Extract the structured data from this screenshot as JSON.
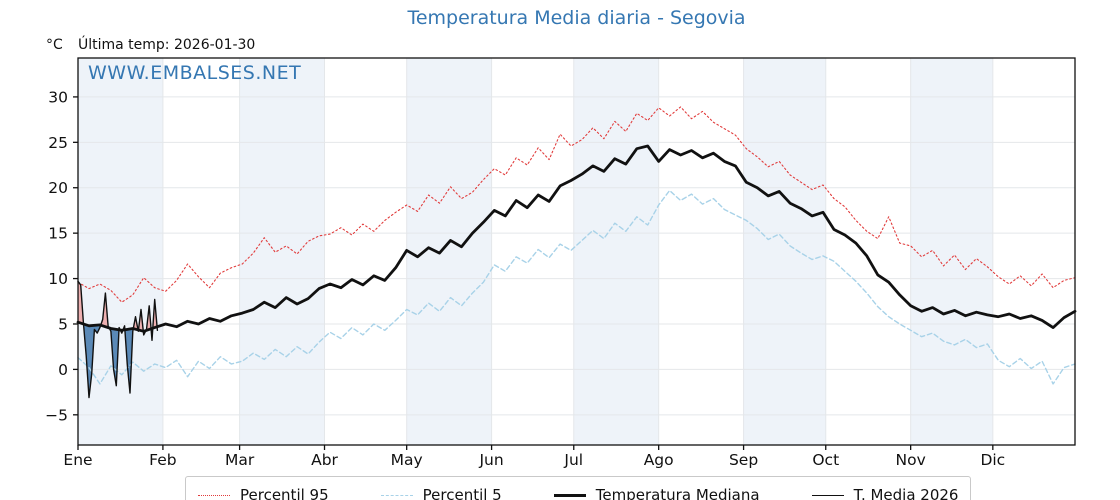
{
  "title": "Temperatura Media diaria - Segovia",
  "watermark": "WWW.EMBALSES.NET",
  "header": {
    "units": "°C",
    "last_temp_label": "Última temp: 2026-01-30"
  },
  "legend": {
    "items": [
      {
        "label": "Percentil 95",
        "color": "#e13c3c",
        "style": "dotted"
      },
      {
        "label": "Percentil 5",
        "color": "#a8d2e8",
        "style": "dashed"
      },
      {
        "label": "Temperatura Mediana",
        "color": "#111111",
        "style": "solid-thick"
      },
      {
        "label": "T. Media 2026",
        "color": "#111111",
        "style": "solid-thin"
      }
    ]
  },
  "chart_data": {
    "type": "line",
    "title": "Temperatura Media diaria - Segovia",
    "ylabel": "°C",
    "ylim": [
      -8.3,
      34.3
    ],
    "yticks": [
      -5,
      0,
      5,
      10,
      15,
      20,
      25,
      30
    ],
    "grid": true,
    "legend_position": "bottom",
    "days_per_year": 365,
    "months": [
      {
        "label": "Ene",
        "start_day": 1
      },
      {
        "label": "Feb",
        "start_day": 32
      },
      {
        "label": "Mar",
        "start_day": 60
      },
      {
        "label": "Abr",
        "start_day": 91
      },
      {
        "label": "May",
        "start_day": 121
      },
      {
        "label": "Jun",
        "start_day": 152
      },
      {
        "label": "Jul",
        "start_day": 182
      },
      {
        "label": "Ago",
        "start_day": 213
      },
      {
        "label": "Sep",
        "start_day": 244
      },
      {
        "label": "Oct",
        "start_day": 274
      },
      {
        "label": "Nov",
        "start_day": 305
      },
      {
        "label": "Dic",
        "start_day": 335
      }
    ],
    "colors": {
      "band": "#eef3f9",
      "grid": "#e4e7ea",
      "axis": "#111111",
      "title_blue": "#3577b2",
      "fill_above": "#eeaaaa",
      "fill_below": "#4d80b1"
    },
    "series": [
      {
        "name": "Percentil 95",
        "color": "#e13c3c",
        "style": "dotted",
        "width": 1.1,
        "x_start": 1,
        "x_step": 4,
        "values": [
          9.6,
          8.9,
          9.4,
          8.7,
          7.4,
          8.2,
          10.1,
          9.0,
          8.6,
          9.8,
          11.6,
          10.2,
          9.0,
          10.6,
          11.2,
          11.6,
          12.8,
          14.5,
          12.9,
          13.6,
          12.7,
          14.1,
          14.7,
          14.9,
          15.6,
          14.8,
          16.0,
          15.2,
          16.4,
          17.3,
          18.1,
          17.4,
          19.2,
          18.3,
          20.1,
          18.8,
          19.5,
          20.9,
          22.1,
          21.4,
          23.3,
          22.5,
          24.4,
          23.1,
          25.9,
          24.6,
          25.3,
          26.6,
          25.4,
          27.3,
          26.2,
          28.2,
          27.4,
          28.8,
          27.9,
          28.9,
          27.6,
          28.4,
          27.2,
          26.5,
          25.8,
          24.3,
          23.4,
          22.3,
          22.9,
          21.4,
          20.6,
          19.8,
          20.3,
          18.8,
          17.9,
          16.4,
          15.2,
          14.4,
          16.8,
          13.9,
          13.6,
          12.4,
          13.1,
          11.4,
          12.6,
          11.0,
          12.2,
          11.3,
          10.2,
          9.4,
          10.3,
          9.2,
          10.5,
          9.0,
          9.8,
          10.1
        ]
      },
      {
        "name": "Percentil 5",
        "color": "#a8d2e8",
        "style": "dashed",
        "width": 1.4,
        "x_start": 1,
        "x_step": 4,
        "values": [
          1.3,
          0.2,
          -1.6,
          0.4,
          -0.6,
          0.8,
          -0.2,
          0.6,
          0.2,
          1.0,
          -0.8,
          0.9,
          0.1,
          1.4,
          0.6,
          0.9,
          1.8,
          1.1,
          2.2,
          1.4,
          2.5,
          1.7,
          3.0,
          4.1,
          3.4,
          4.6,
          3.8,
          5.0,
          4.3,
          5.4,
          6.6,
          6.0,
          7.3,
          6.4,
          7.9,
          7.0,
          8.4,
          9.6,
          11.5,
          10.8,
          12.4,
          11.7,
          13.2,
          12.3,
          13.8,
          13.1,
          14.2,
          15.3,
          14.4,
          16.1,
          15.2,
          16.8,
          15.9,
          18.1,
          19.7,
          18.6,
          19.3,
          18.2,
          18.8,
          17.6,
          17.0,
          16.4,
          15.5,
          14.3,
          14.9,
          13.6,
          12.8,
          12.1,
          12.5,
          11.9,
          10.8,
          9.7,
          8.4,
          6.9,
          5.8,
          5.0,
          4.3,
          3.6,
          4.0,
          3.1,
          2.7,
          3.3,
          2.4,
          2.8,
          1.0,
          0.3,
          1.2,
          0.1,
          0.9,
          -1.6,
          0.2,
          0.6
        ]
      },
      {
        "name": "Temperatura Mediana",
        "color": "#111111",
        "style": "solid",
        "width": 2.8,
        "x_start": 1,
        "x_step": 4,
        "values": [
          5.2,
          4.8,
          4.9,
          4.5,
          4.3,
          4.5,
          4.2,
          4.6,
          5.0,
          4.7,
          5.3,
          5.0,
          5.6,
          5.3,
          5.9,
          6.2,
          6.6,
          7.4,
          6.8,
          7.9,
          7.2,
          7.8,
          8.9,
          9.4,
          9.0,
          9.9,
          9.3,
          10.3,
          9.8,
          11.2,
          13.1,
          12.4,
          13.4,
          12.8,
          14.2,
          13.5,
          15.0,
          16.2,
          17.5,
          16.9,
          18.6,
          17.8,
          19.2,
          18.5,
          20.2,
          20.8,
          21.5,
          22.4,
          21.8,
          23.2,
          22.6,
          24.3,
          24.6,
          22.9,
          24.2,
          23.6,
          24.1,
          23.3,
          23.8,
          22.9,
          22.4,
          20.6,
          20.0,
          19.1,
          19.6,
          18.3,
          17.7,
          16.9,
          17.3,
          15.4,
          14.8,
          13.9,
          12.5,
          10.4,
          9.6,
          8.2,
          7.0,
          6.4,
          6.8,
          6.1,
          6.5,
          5.9,
          6.3,
          6.0,
          5.8,
          6.1,
          5.6,
          5.9,
          5.4,
          4.6,
          5.7,
          6.4
        ]
      },
      {
        "name": "T. Media 2026",
        "color": "#111111",
        "style": "solid",
        "width": 1.4,
        "x_start": 1,
        "x_step": 1,
        "values": [
          9.7,
          9.3,
          5.0,
          1.5,
          -3.1,
          -0.5,
          4.4,
          4.0,
          4.6,
          5.5,
          8.4,
          4.8,
          4.2,
          0.0,
          -1.8,
          4.6,
          4.0,
          4.8,
          0.5,
          -2.6,
          4.2,
          5.8,
          4.2,
          6.6,
          3.8,
          4.4,
          7.0,
          3.2,
          7.7,
          4.3
        ]
      }
    ],
    "fills": {
      "between": "T. Media 2026 vs Temperatura Mediana",
      "above_color": "#eeaaaa",
      "below_color": "#4d80b1"
    }
  }
}
